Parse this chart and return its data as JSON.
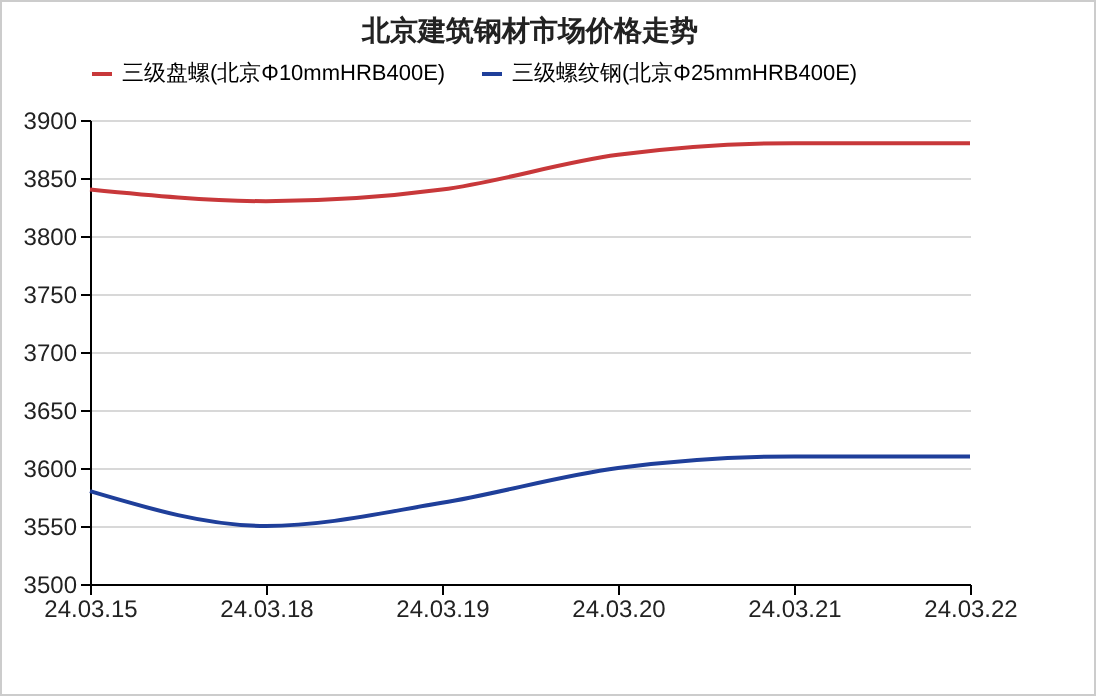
{
  "chart_data": {
    "type": "line",
    "title": "北京建筑钢材市场价格走势",
    "categories": [
      "24.03.15",
      "24.03.18",
      "24.03.19",
      "24.03.20",
      "24.03.21",
      "24.03.22"
    ],
    "series": [
      {
        "name": "三级盘螺(北京Φ10mmHRB400E)",
        "color": "#c8383a",
        "values": [
          3840,
          3830,
          3840,
          3870,
          3880,
          3880
        ]
      },
      {
        "name": "三级螺纹钢(北京Φ25mmHRB400E)",
        "color": "#1f3f9a",
        "values": [
          3580,
          3550,
          3570,
          3600,
          3610,
          3610
        ]
      }
    ],
    "ylim": [
      3500,
      3900
    ],
    "yticks": [
      3500,
      3550,
      3600,
      3650,
      3700,
      3750,
      3800,
      3850,
      3900
    ],
    "grid": "y",
    "legend": "top",
    "marker": "none",
    "line_style": "solid"
  }
}
